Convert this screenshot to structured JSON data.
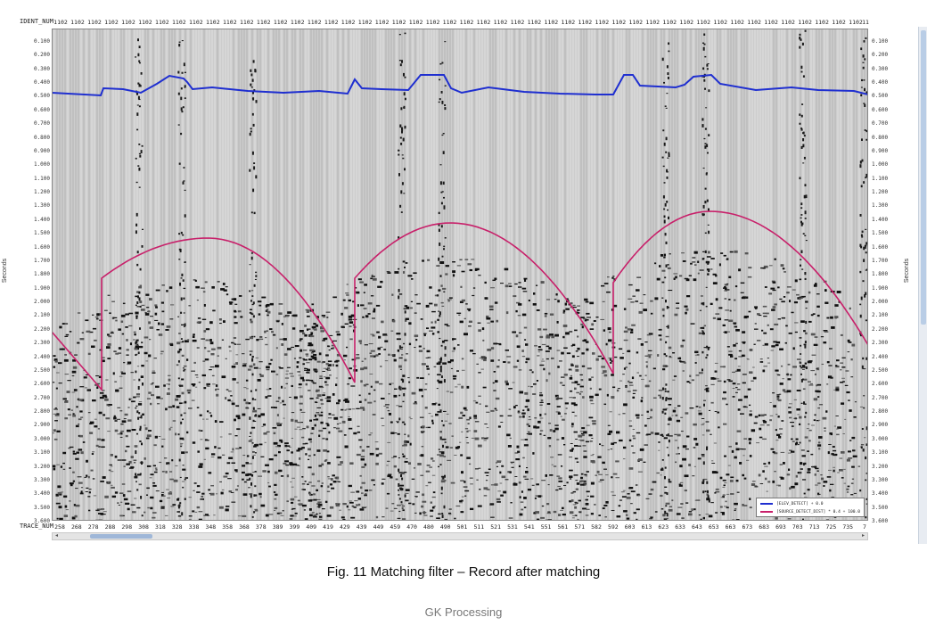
{
  "viewer": {
    "ident_header_label": "IDENT_NUM",
    "ident_value": "1102",
    "ident_last": "11",
    "trace_header_label": "TRACE_NUM",
    "trace_ticks": [
      "258",
      "268",
      "278",
      "288",
      "298",
      "308",
      "318",
      "328",
      "338",
      "348",
      "358",
      "368",
      "378",
      "389",
      "399",
      "409",
      "419",
      "429",
      "439",
      "449",
      "459",
      "470",
      "480",
      "490",
      "501",
      "511",
      "521",
      "531",
      "541",
      "551",
      "561",
      "571",
      "582",
      "592",
      "603",
      "613",
      "623",
      "633",
      "643",
      "653",
      "663",
      "673",
      "683",
      "693",
      "703",
      "713",
      "725",
      "735",
      "7"
    ],
    "y_axis_label": "Seconds",
    "y_ticks": [
      "0.100",
      "0.200",
      "0.300",
      "0.400",
      "0.500",
      "0.600",
      "0.700",
      "0.800",
      "0.900",
      "1.000",
      "1.100",
      "1.200",
      "1.300",
      "1.400",
      "1.500",
      "1.600",
      "1.700",
      "1.800",
      "1.900",
      "2.000",
      "2.100",
      "2.200",
      "2.300",
      "2.400",
      "2.500",
      "2.600",
      "2.700",
      "2.800",
      "2.900",
      "3.000",
      "3.100",
      "3.200",
      "3.300",
      "3.400",
      "3.500",
      "3.600"
    ],
    "colors": {
      "background_traces": "#c9c9c9",
      "blue_curve": "#1f2fd0",
      "red_curve": "#c8206a"
    },
    "legend": {
      "items": [
        {
          "label": "[ELEV_DETECT] + 0.0",
          "color": "#1f2fd0"
        },
        {
          "label": "[SOURCE_DETECT_DIST] * 0.4 + 100.0",
          "color": "#c8206a"
        }
      ]
    },
    "scroll_left_icon": "◂",
    "scroll_right_icon": "▸"
  },
  "caption": "Fig. 11 Matching filter – Record after matching",
  "footer": "GK Processing"
}
